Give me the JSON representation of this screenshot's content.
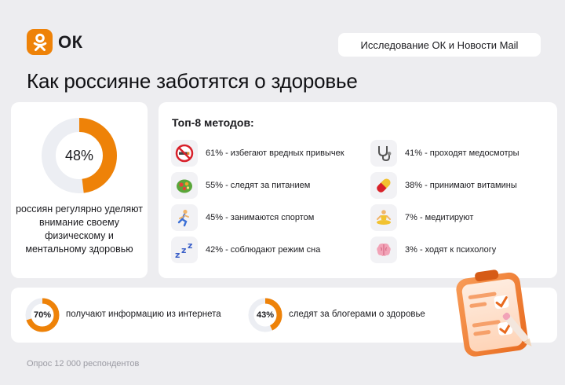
{
  "logo": {
    "text": "ОК"
  },
  "source": "Исследование ОК и Новости Mail",
  "title": "Как россияне заботятся о здоровье",
  "headline": {
    "percent_label": "48%",
    "value": 48,
    "text": "россиян регулярно уделяют внимание своему физическому и ментальному здоровью"
  },
  "methods": {
    "title": "Топ-8 методов:",
    "items": [
      {
        "label": "61% - избегают вредных привычек",
        "icon": "no-smoking-icon"
      },
      {
        "label": "55% - следят за питанием",
        "icon": "salad-icon"
      },
      {
        "label": "45% - занимаются спортом",
        "icon": "runner-icon"
      },
      {
        "label": "42% - соблюдают режим сна",
        "icon": "zzz-icon"
      },
      {
        "label": "41% - проходят медосмотры",
        "icon": "stethoscope-icon"
      },
      {
        "label": "38% - принимают витамины",
        "icon": "pill-icon"
      },
      {
        "label": "7% - медитируют",
        "icon": "meditation-icon"
      },
      {
        "label": "3% - ходят к психологу",
        "icon": "brain-icon"
      }
    ]
  },
  "info_sources": [
    {
      "percent_label": "70%",
      "value": 70,
      "text": "получают информацию из интернета"
    },
    {
      "percent_label": "43%",
      "value": 43,
      "text": "следят за блогерами о здоровье"
    }
  ],
  "footnote": "Опрос 12 000 респондентов",
  "chart_data": {
    "type": "bar",
    "categories": [
      "избегают вредных привычек",
      "следят за питанием",
      "занимаются спортом",
      "соблюдают режим сна",
      "проходят медосмотры",
      "принимают витамины",
      "медитируют",
      "ходят к психологу"
    ],
    "values": [
      61,
      55,
      45,
      42,
      41,
      38,
      7,
      3
    ],
    "title": "Как россияне заботятся о здоровье",
    "xlabel": "",
    "ylabel": "",
    "donuts": [
      {
        "value": 48
      },
      {
        "value": 70
      },
      {
        "value": 43
      }
    ]
  },
  "colors": {
    "accent": "#ee8208",
    "track": "#eceef3",
    "background": "#ededf0",
    "card": "#ffffff"
  }
}
